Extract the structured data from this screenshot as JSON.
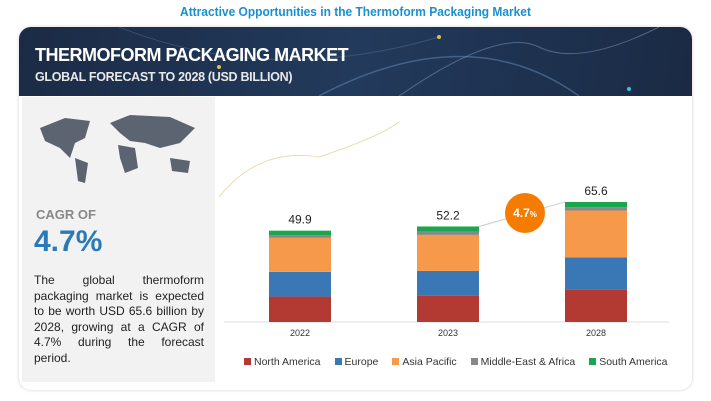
{
  "page_title": "Attractive Opportunities in the Thermoform Packaging Market",
  "header": {
    "title": "THERMOFORM PACKAGING MARKET",
    "subtitle": "GLOBAL FORECAST TO 2028 (USD BILLION)"
  },
  "left_panel": {
    "cagr_label": "CAGR OF",
    "cagr_value": "4.7%",
    "description": "The global thermoform packaging market is expected to be worth USD 65.6 billion by 2028, growing at a CAGR of 4.7% during the forecast period."
  },
  "chart_data": {
    "type": "bar",
    "stacked": true,
    "categories": [
      "2022",
      "2023",
      "2028"
    ],
    "totals": [
      "49.9",
      "52.2",
      "65.6"
    ],
    "cagr_badge": {
      "value": "4.7",
      "unit": "%"
    },
    "series": [
      {
        "name": "North America",
        "color": "#b33a32",
        "values": [
          13.9,
          14.4,
          17.9
        ]
      },
      {
        "name": "Europe",
        "color": "#3a78b5",
        "values": [
          13.5,
          13.5,
          17.4
        ]
      },
      {
        "name": "Asia Pacific",
        "color": "#f7994a",
        "values": [
          18.6,
          19.7,
          25.6
        ]
      },
      {
        "name": "Middle-East & Africa",
        "color": "#888888",
        "values": [
          1.5,
          1.7,
          1.8
        ]
      },
      {
        "name": "South America",
        "color": "#1aa54f",
        "values": [
          2.4,
          2.9,
          2.9
        ]
      }
    ],
    "ylim": [
      0,
      70
    ],
    "legend": "bottom",
    "grid": false
  }
}
